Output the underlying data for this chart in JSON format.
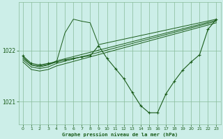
{
  "title": "Graphe pression niveau de la mer (hPa)",
  "bg_color": "#cceee8",
  "grid_color": "#88bb99",
  "line_color": "#1a5c1a",
  "xlim": [
    -0.5,
    23.5
  ],
  "ylim": [
    1020.55,
    1022.95
  ],
  "yticks": [
    1021.0,
    1022.0
  ],
  "xticks": [
    0,
    1,
    2,
    3,
    4,
    5,
    6,
    7,
    8,
    9,
    10,
    11,
    12,
    13,
    14,
    15,
    16,
    17,
    18,
    19,
    20,
    21,
    22,
    23
  ],
  "main_series": {
    "x": [
      0,
      1,
      2,
      3,
      4,
      5,
      6,
      7,
      8,
      9,
      10,
      11,
      12,
      13,
      14,
      15,
      16,
      17,
      18,
      19,
      20,
      21,
      22,
      23
    ],
    "y": [
      1021.9,
      1021.75,
      1021.72,
      1021.75,
      1021.78,
      1021.82,
      1021.85,
      1021.88,
      1021.9,
      1022.1,
      1021.85,
      1021.65,
      1021.45,
      1021.18,
      1020.92,
      1020.78,
      1020.78,
      1021.15,
      1021.4,
      1021.62,
      1021.78,
      1021.92,
      1022.42,
      1022.62
    ]
  },
  "fan_lines": [
    {
      "x": [
        0,
        1,
        2,
        3,
        4,
        5,
        6,
        7,
        8,
        9,
        23
      ],
      "y": [
        1021.88,
        1021.72,
        1021.68,
        1021.72,
        1021.78,
        1022.35,
        1022.62,
        1022.58,
        1022.55,
        1022.12,
        1022.62
      ]
    },
    {
      "x": [
        0,
        1,
        2,
        3,
        4,
        23
      ],
      "y": [
        1021.85,
        1021.72,
        1021.7,
        1021.73,
        1021.8,
        1022.6
      ]
    },
    {
      "x": [
        0,
        1,
        2,
        3,
        4,
        23
      ],
      "y": [
        1021.82,
        1021.68,
        1021.65,
        1021.68,
        1021.75,
        1022.58
      ]
    },
    {
      "x": [
        0,
        1,
        2,
        3,
        4,
        23
      ],
      "y": [
        1021.78,
        1021.63,
        1021.6,
        1021.63,
        1021.7,
        1022.55
      ]
    }
  ]
}
